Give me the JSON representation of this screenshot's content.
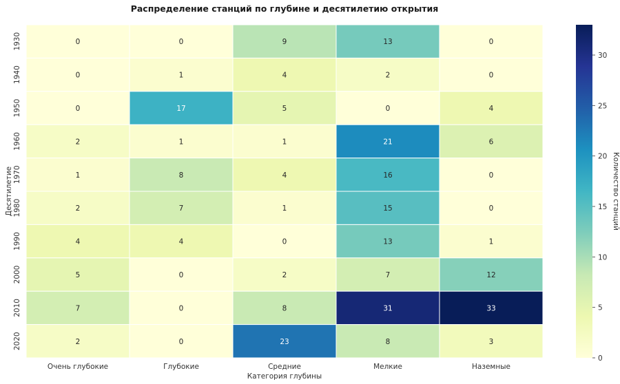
{
  "chart_data": {
    "type": "heatmap",
    "title": "Распределение станций по глубине и десятилетию открытия",
    "xlabel": "Категория глубины",
    "ylabel": "Десятилетие",
    "x_categories": [
      "Очень глубокие",
      "Глубокие",
      "Средние",
      "Мелкие",
      "Наземные"
    ],
    "y_categories": [
      "1930",
      "1940",
      "1950",
      "1960",
      "1970",
      "1980",
      "1990",
      "2000",
      "2010",
      "2020"
    ],
    "values": [
      [
        0,
        0,
        9,
        13,
        0
      ],
      [
        0,
        1,
        4,
        2,
        0
      ],
      [
        0,
        17,
        5,
        0,
        4
      ],
      [
        2,
        1,
        1,
        21,
        6
      ],
      [
        1,
        8,
        4,
        16,
        0
      ],
      [
        2,
        7,
        1,
        15,
        0
      ],
      [
        4,
        4,
        0,
        13,
        1
      ],
      [
        5,
        0,
        2,
        7,
        12
      ],
      [
        7,
        0,
        8,
        31,
        33
      ],
      [
        2,
        0,
        23,
        8,
        3
      ]
    ],
    "annotated": true,
    "colormap": "YlGnBu",
    "colorbar": {
      "label": "Количество станций",
      "range": [
        0,
        33
      ],
      "ticks": [
        0,
        5,
        10,
        15,
        20,
        25,
        30
      ],
      "placement": "right"
    },
    "grid": false
  }
}
